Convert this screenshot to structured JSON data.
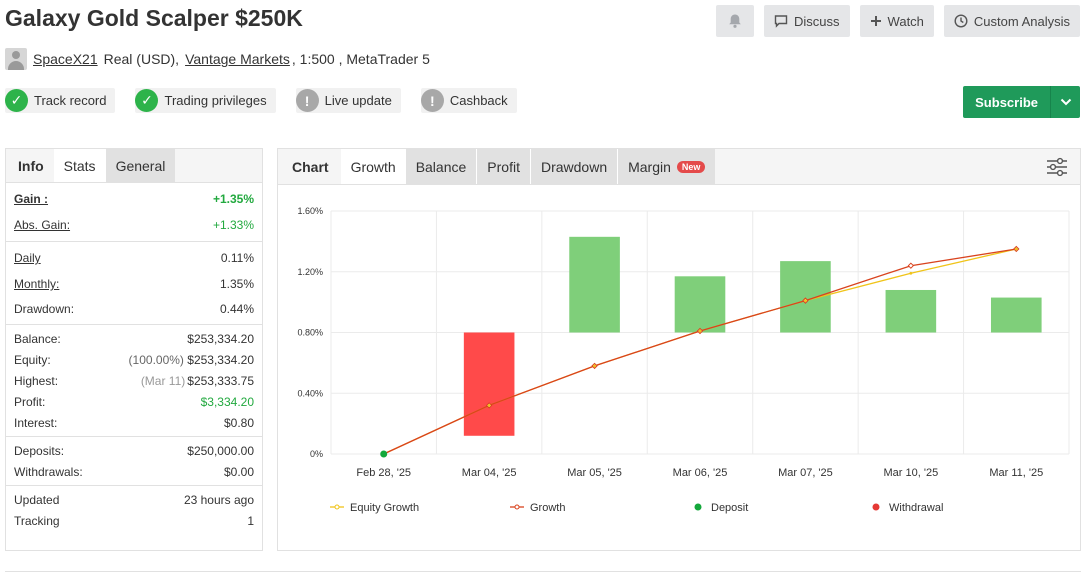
{
  "header": {
    "title": "Galaxy Gold Scalper $250K",
    "discuss_label": "Discuss",
    "watch_label": "Watch",
    "custom_analysis_label": "Custom Analysis"
  },
  "owner": {
    "username": "SpaceX21",
    "account_type": "Real (USD),",
    "broker": "Vantage Markets",
    "details": ", 1:500 , MetaTrader 5"
  },
  "badges": [
    {
      "label": "Track record",
      "status": "ok"
    },
    {
      "label": "Trading privileges",
      "status": "ok"
    },
    {
      "label": "Live update",
      "status": "warn"
    },
    {
      "label": "Cashback",
      "status": "warn"
    }
  ],
  "subscribe_label": "Subscribe",
  "left_tabs": [
    "Info",
    "Stats",
    "General"
  ],
  "stats": {
    "gain_label": "Gain :",
    "gain_value": "+1.35%",
    "abs_gain_label": "Abs. Gain:",
    "abs_gain_value": "+1.33%",
    "daily_label": "Daily",
    "daily_value": "0.11%",
    "monthly_label": "Monthly:",
    "monthly_value": "1.35%",
    "drawdown_label": "Drawdown:",
    "drawdown_value": "0.44%",
    "balance_label": "Balance:",
    "balance_value": "$253,334.20",
    "equity_label": "Equity:",
    "equity_pct": "(100.00%)",
    "equity_value": "$253,334.20",
    "highest_label": "Highest:",
    "highest_date": "(Mar 11)",
    "highest_value": "$253,333.75",
    "profit_label": "Profit:",
    "profit_value": "$3,334.20",
    "interest_label": "Interest:",
    "interest_value": "$0.80",
    "deposits_label": "Deposits:",
    "deposits_value": "$250,000.00",
    "withdrawals_label": "Withdrawals:",
    "withdrawals_value": "$0.00",
    "updated_label": "Updated",
    "updated_value": "23 hours ago",
    "tracking_label": "Tracking",
    "tracking_value": "1"
  },
  "chart_tabs": {
    "chart": "Chart",
    "growth": "Growth",
    "balance": "Balance",
    "profit": "Profit",
    "drawdown": "Drawdown",
    "margin": "Margin",
    "new_badge": "New"
  },
  "colors": {
    "accent_green": "#1f9a5a",
    "positive": "#22a93f",
    "bar_up": "#7fcf7a",
    "bar_down": "#ff4a4a",
    "equity_line": "#f0c419",
    "growth_line": "#d9431e"
  },
  "chart_data": {
    "type": "bar",
    "categories": [
      "Feb 28, '25",
      "Mar 04, '25",
      "Mar 05, '25",
      "Mar 06, '25",
      "Mar 07, '25",
      "Mar 10, '25",
      "Mar 11, '25"
    ],
    "ylim": [
      0,
      1.6
    ],
    "yticks": [
      "0%",
      "0.40%",
      "0.80%",
      "1.20%",
      "1.60%"
    ],
    "bars": [
      null,
      {
        "from": 0.8,
        "to": 0.12,
        "direction": "down"
      },
      {
        "from": 0.8,
        "to": 1.43,
        "direction": "up"
      },
      {
        "from": 0.8,
        "to": 1.17,
        "direction": "up"
      },
      {
        "from": 0.8,
        "to": 1.27,
        "direction": "up"
      },
      {
        "from": 0.8,
        "to": 1.08,
        "direction": "up"
      },
      {
        "from": 0.8,
        "to": 1.03,
        "direction": "up"
      }
    ],
    "series": [
      {
        "name": "Equity Growth",
        "values": [
          0.0,
          0.32,
          0.58,
          0.81,
          1.01,
          1.19,
          1.35
        ]
      },
      {
        "name": "Growth",
        "values": [
          0.0,
          0.32,
          0.58,
          0.81,
          1.01,
          1.24,
          1.35
        ]
      }
    ],
    "deposit_point": {
      "index": 0,
      "value": 0.0
    },
    "legend": [
      "Equity Growth",
      "Growth",
      "Deposit",
      "Withdrawal"
    ],
    "legend_position": "bottom",
    "grid": true
  }
}
